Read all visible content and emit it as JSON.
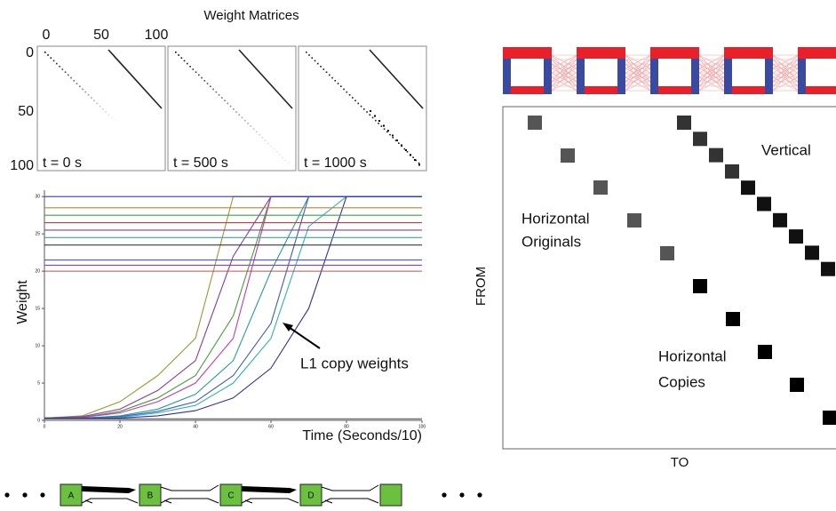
{
  "weight_matrices": {
    "title": "Weight Matrices",
    "col_ticks": [
      0,
      50,
      100
    ],
    "row_ticks": [
      0,
      50,
      100
    ],
    "panels": [
      "t = 0 s",
      "t = 500 s",
      "t = 1000 s"
    ]
  },
  "chart_data": {
    "type": "line",
    "ylabel": "Weight",
    "xlabel": "Time (Seconds/10)",
    "annotation": "L1 copy weights",
    "x": [
      0,
      10,
      20,
      30,
      40,
      50,
      60,
      70,
      80,
      90,
      100
    ],
    "xlim": [
      0,
      100
    ],
    "ylim": [
      0,
      30.5
    ],
    "xticks": [
      0,
      20,
      40,
      60,
      80,
      100
    ],
    "yticks": [
      0,
      5,
      10,
      15,
      20,
      25,
      30
    ],
    "series": [
      {
        "color": "#9a9a3a",
        "values": [
          0.3,
          0.6,
          2.5,
          6,
          11,
          30,
          30,
          30,
          30,
          30,
          30
        ]
      },
      {
        "color": "#8a3a9a",
        "values": [
          0.3,
          0.5,
          1.5,
          4,
          8,
          22,
          30,
          30,
          30,
          30,
          30
        ]
      },
      {
        "color": "#4a9a3a",
        "values": [
          0.3,
          0.4,
          1.2,
          3,
          6,
          14,
          30,
          30,
          30,
          30,
          30
        ]
      },
      {
        "color": "#c03ab0",
        "values": [
          0.3,
          0.4,
          1,
          2.5,
          5,
          11,
          30,
          30,
          30,
          30,
          30
        ]
      },
      {
        "color": "#2a9a9a",
        "values": [
          0.3,
          0.3,
          0.6,
          1.5,
          3.5,
          8,
          20,
          30,
          30,
          30,
          30
        ]
      },
      {
        "color": "#3a5ac0",
        "values": [
          0.3,
          0.3,
          0.5,
          1.2,
          2.5,
          6,
          13,
          30,
          30,
          30,
          30
        ]
      },
      {
        "color": "#30b0c0",
        "values": [
          0.3,
          0.3,
          0.4,
          1,
          2,
          5,
          11,
          26,
          30,
          30,
          30
        ]
      },
      {
        "color": "#3030a0",
        "values": [
          0.3,
          0.3,
          0.3,
          0.6,
          1.3,
          3,
          7,
          15,
          30,
          30,
          30
        ]
      },
      {
        "color": "#3a3ab0",
        "values": [
          30,
          30,
          30,
          30,
          30,
          30,
          30,
          30,
          30,
          30,
          30
        ]
      },
      {
        "color": "#c08030",
        "values": [
          28.5,
          28.5,
          28.5,
          28.5,
          28.5,
          28.5,
          28.5,
          28.5,
          28.5,
          28.5,
          28.5
        ]
      },
      {
        "color": "#40a040",
        "values": [
          27.5,
          27.5,
          27.5,
          27.5,
          27.5,
          27.5,
          27.5,
          27.5,
          27.5,
          27.5,
          27.5
        ]
      },
      {
        "color": "#c04040",
        "values": [
          26.5,
          26.5,
          26.5,
          26.5,
          26.5,
          26.5,
          26.5,
          26.5,
          26.5,
          26.5,
          26.5
        ]
      },
      {
        "color": "#8040a0",
        "values": [
          25.5,
          25.5,
          25.5,
          25.5,
          25.5,
          25.5,
          25.5,
          25.5,
          25.5,
          25.5,
          25.5
        ]
      },
      {
        "color": "#40a0a0",
        "values": [
          24.5,
          24.5,
          24.5,
          24.5,
          24.5,
          24.5,
          24.5,
          24.5,
          24.5,
          24.5,
          24.5
        ]
      },
      {
        "color": "#202020",
        "values": [
          23.5,
          23.5,
          23.5,
          23.5,
          23.5,
          23.5,
          23.5,
          23.5,
          23.5,
          23.5,
          23.5
        ]
      },
      {
        "color": "#4060c0",
        "values": [
          21.5,
          21.5,
          21.5,
          21.5,
          21.5,
          21.5,
          21.5,
          21.5,
          21.5,
          21.5,
          21.5
        ]
      },
      {
        "color": "#a040a0",
        "values": [
          20.8,
          20.8,
          20.8,
          20.8,
          20.8,
          20.8,
          20.8,
          20.8,
          20.8,
          20.8,
          20.8
        ]
      },
      {
        "color": "#c05050",
        "values": [
          20,
          20,
          20,
          20,
          20,
          20,
          20,
          20,
          20,
          20,
          20
        ]
      },
      {
        "color": "#606060",
        "values": [
          0.2,
          0.2,
          0.2,
          0.2,
          0.2,
          0.2,
          0.2,
          0.2,
          0.2,
          0.2,
          0.2
        ]
      }
    ]
  },
  "matrix_diagram": {
    "vertical": "Vertical",
    "originals": [
      "Horizontal",
      "Originals"
    ],
    "copies": [
      "Horizontal",
      "Copies"
    ],
    "from": "FROM",
    "to": "TO"
  },
  "chain": {
    "nodes": [
      "A",
      "B",
      "C",
      "D"
    ]
  }
}
